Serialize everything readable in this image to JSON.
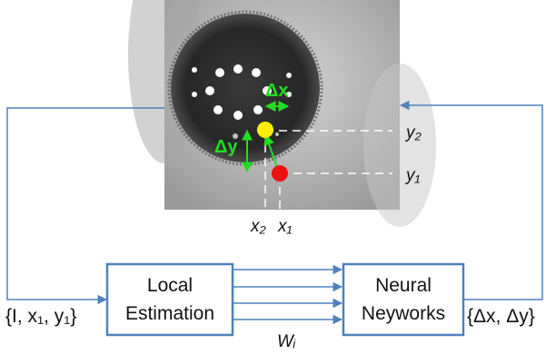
{
  "colors": {
    "box_stroke": "#4f81bd",
    "arrow": "#4f81bd",
    "green": "#22dd22",
    "yellow_point": "#ffee00",
    "red_point": "#ee1111",
    "pupil": "#2b2b2b",
    "iris_background": "#b8b8b8"
  },
  "boxes": {
    "local_estimation": {
      "line1": "Local",
      "line2": "Estimation"
    },
    "neural_networks": {
      "line1": "Neural",
      "line2": "Neyworks"
    }
  },
  "labels": {
    "input": "{I, x₁, y₁}",
    "output": "{Δx, Δy}",
    "weights": "Wᵢ",
    "x1": "x₁",
    "x2": "x₂",
    "y1": "y₁",
    "y2": "y₂",
    "delta_x": "Δx",
    "delta_y": "Δy"
  },
  "icons": {
    "eye_image": "eye-photo",
    "yellow_point": "estimated-point",
    "red_point": "initial-point"
  }
}
